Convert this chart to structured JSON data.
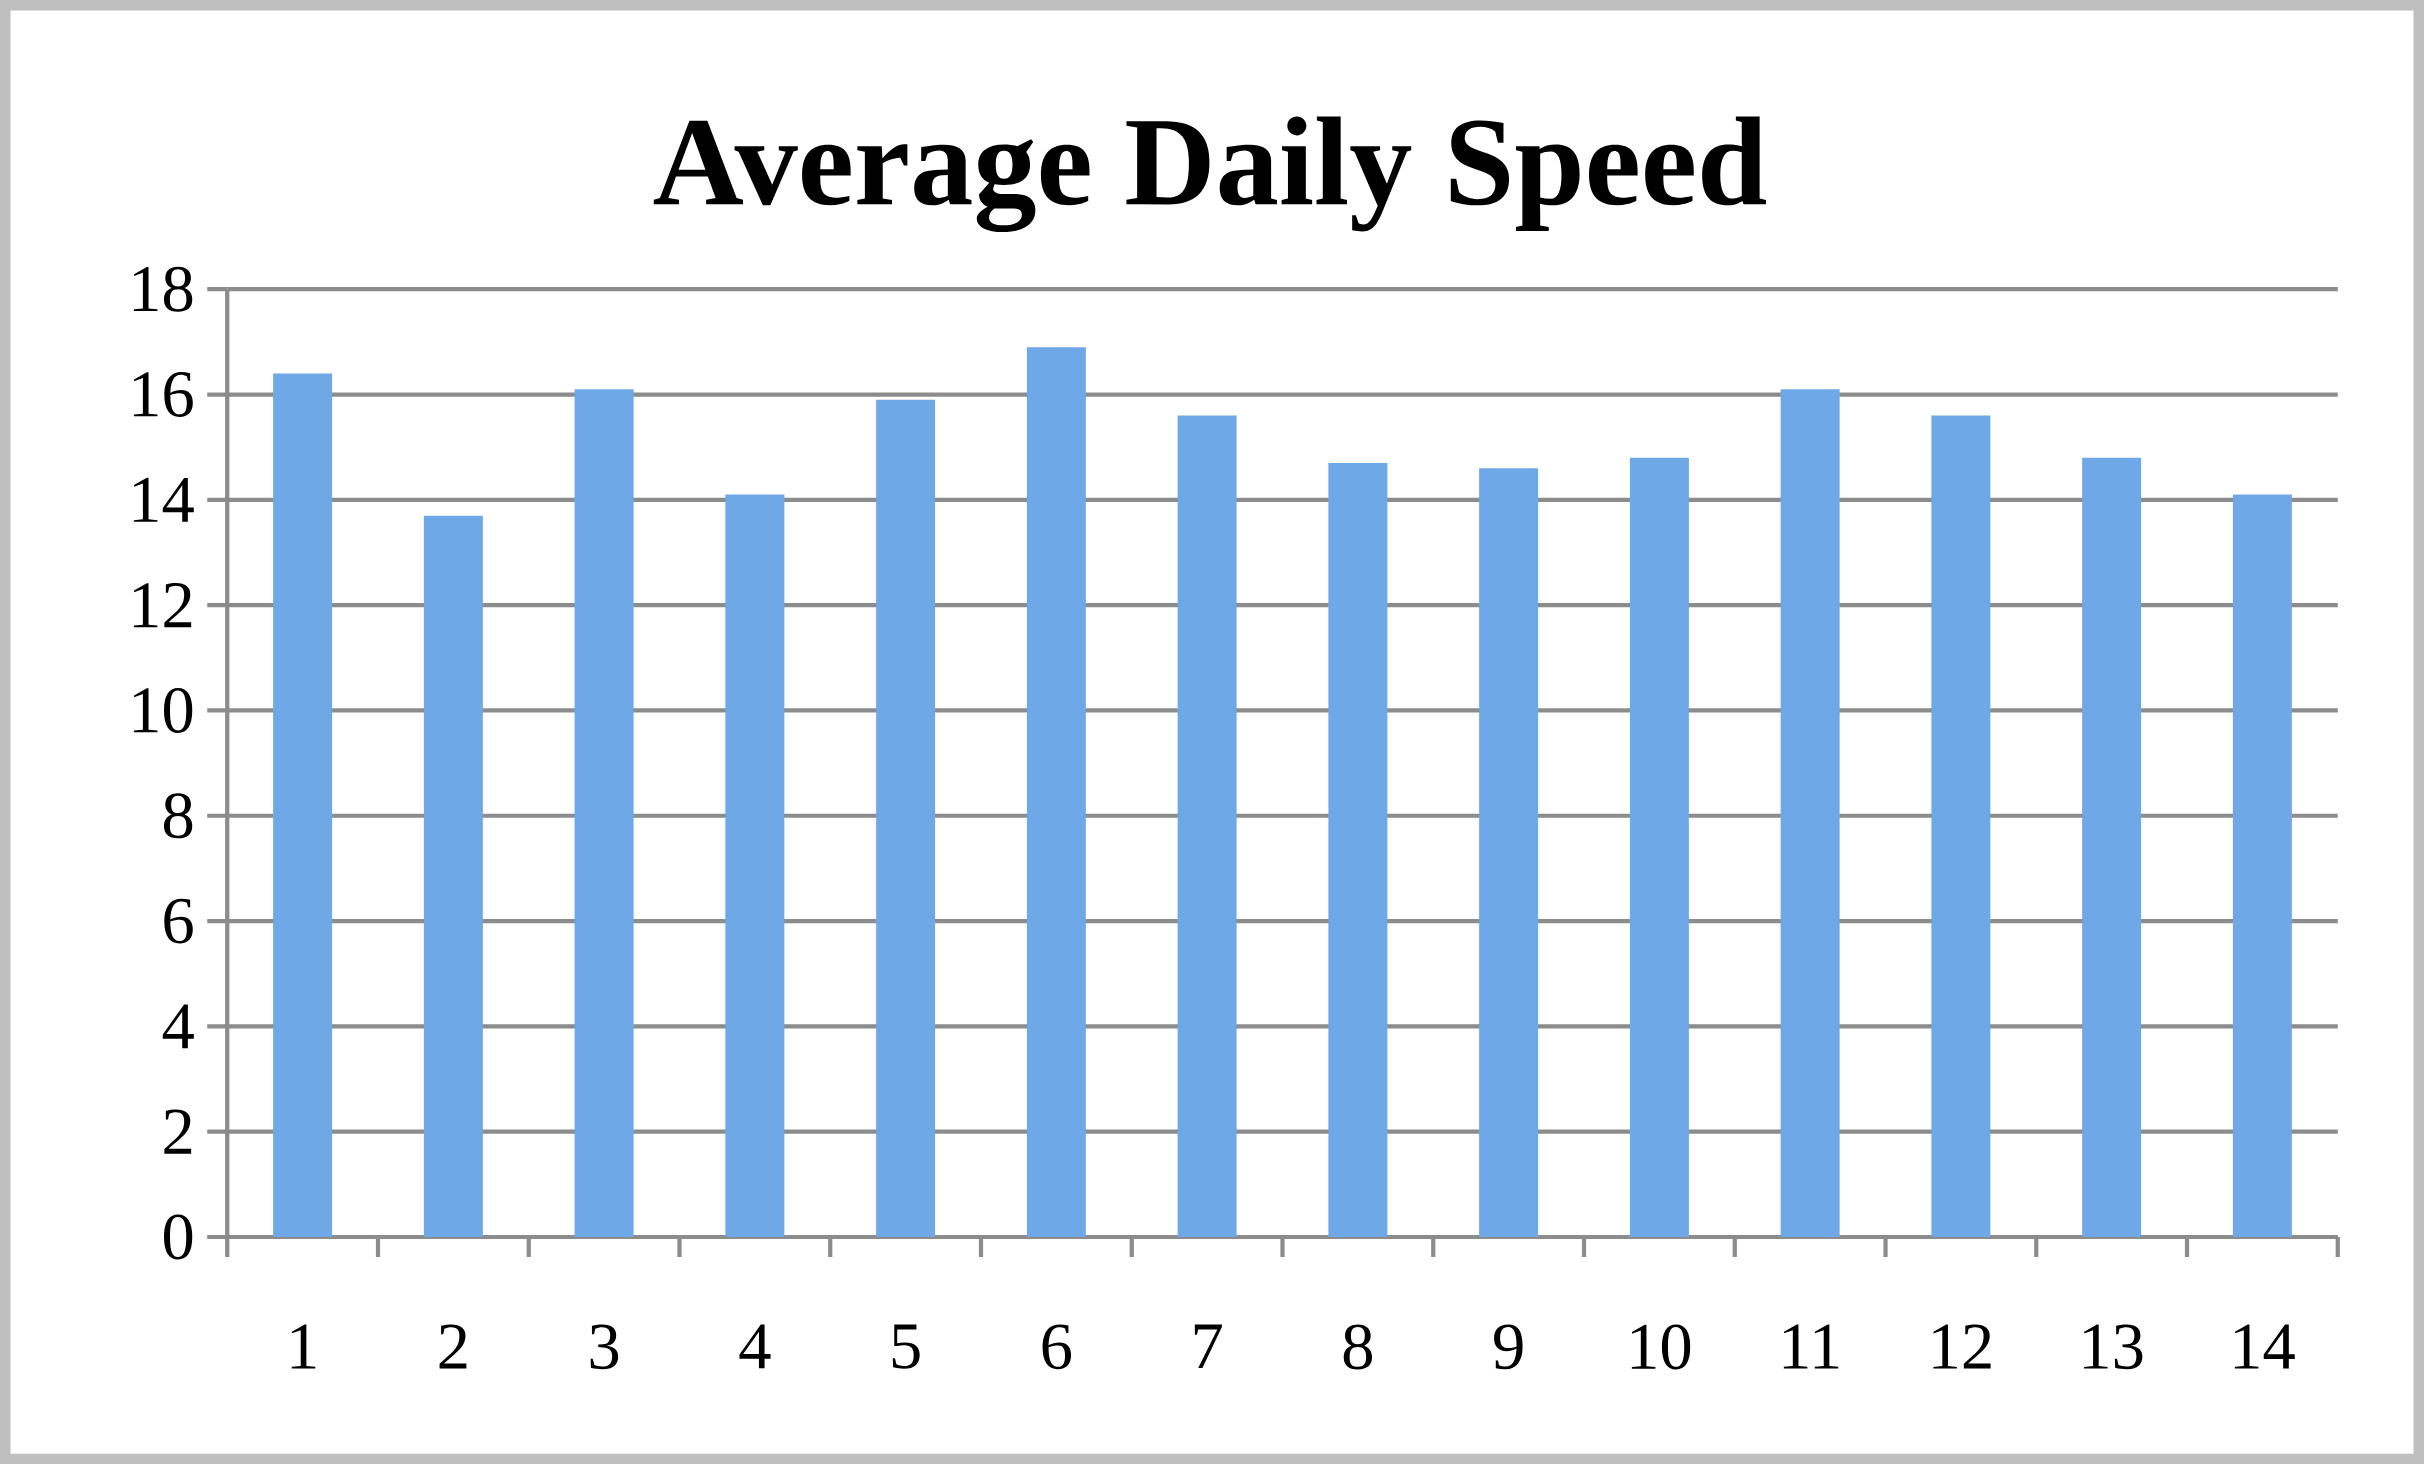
{
  "chart_data": {
    "type": "bar",
    "title": "Average Daily Speed",
    "categories": [
      "1",
      "2",
      "3",
      "4",
      "5",
      "6",
      "7",
      "8",
      "9",
      "10",
      "11",
      "12",
      "13",
      "14"
    ],
    "values": [
      16.4,
      13.7,
      16.1,
      14.1,
      15.9,
      16.9,
      15.6,
      14.7,
      14.6,
      14.8,
      16.1,
      15.6,
      14.8,
      14.1
    ],
    "color": "#6fa8e6",
    "ylim": [
      0,
      18
    ],
    "yticks": [
      0,
      2,
      4,
      6,
      8,
      10,
      12,
      14,
      16,
      18
    ],
    "grid": "y"
  }
}
